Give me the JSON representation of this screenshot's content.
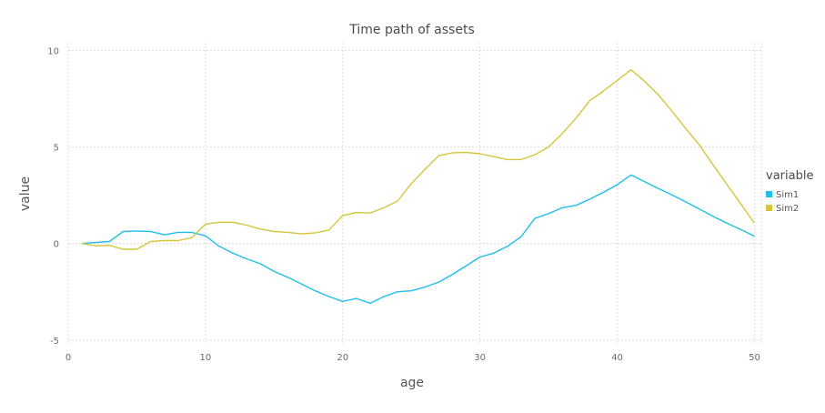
{
  "chart_data": {
    "type": "line",
    "title": "Time path of assets",
    "xlabel": "age",
    "ylabel": "value",
    "xlim": [
      0,
      50.5
    ],
    "ylim": [
      -5.2,
      10.4
    ],
    "xticks": [
      0,
      10,
      20,
      30,
      40,
      50
    ],
    "yticks": [
      -5,
      0,
      5,
      10
    ],
    "grid": true,
    "legend": {
      "title": "variable",
      "position": "right"
    },
    "series": [
      {
        "name": "Sim1",
        "color": "#1fbfea",
        "x": [
          1,
          2,
          3,
          4,
          5,
          6,
          7,
          8,
          9,
          10,
          11,
          12,
          13,
          14,
          15,
          16,
          17,
          18,
          19,
          20,
          21,
          22,
          23,
          24,
          25,
          26,
          27,
          28,
          29,
          30,
          31,
          32,
          33,
          34,
          35,
          36,
          37,
          38,
          39,
          40,
          41,
          42,
          43,
          44,
          45,
          46,
          47,
          48,
          49,
          50
        ],
        "y": [
          0,
          0.05,
          0.1,
          0.62,
          0.65,
          0.62,
          0.45,
          0.58,
          0.58,
          0.4,
          -0.15,
          -0.5,
          -0.8,
          -1.05,
          -1.45,
          -1.75,
          -2.1,
          -2.45,
          -2.75,
          -3.0,
          -2.85,
          -3.1,
          -2.75,
          -2.5,
          -2.45,
          -2.25,
          -2.0,
          -1.6,
          -1.15,
          -0.7,
          -0.5,
          -0.15,
          0.35,
          1.3,
          1.55,
          1.85,
          1.98,
          2.3,
          2.65,
          3.05,
          3.55,
          3.2,
          2.85,
          2.52,
          2.15,
          1.78,
          1.4,
          1.05,
          0.72,
          0.38
        ]
      },
      {
        "name": "Sim2",
        "color": "#d4c63a",
        "x": [
          1,
          2,
          3,
          4,
          5,
          6,
          7,
          8,
          9,
          10,
          11,
          12,
          13,
          14,
          15,
          16,
          17,
          18,
          19,
          20,
          21,
          22,
          23,
          24,
          25,
          26,
          27,
          28,
          29,
          30,
          31,
          32,
          33,
          34,
          35,
          36,
          37,
          38,
          39,
          40,
          41,
          42,
          43,
          44,
          45,
          46,
          47,
          48,
          49,
          50
        ],
        "y": [
          0,
          -0.12,
          -0.1,
          -0.3,
          -0.3,
          0.1,
          0.15,
          0.15,
          0.3,
          1.0,
          1.1,
          1.1,
          0.95,
          0.75,
          0.62,
          0.58,
          0.5,
          0.55,
          0.7,
          1.45,
          1.6,
          1.58,
          1.85,
          2.2,
          3.1,
          3.85,
          4.55,
          4.7,
          4.72,
          4.65,
          4.5,
          4.35,
          4.35,
          4.6,
          5.0,
          5.7,
          6.5,
          7.4,
          7.9,
          8.45,
          9.0,
          8.4,
          7.7,
          6.85,
          5.95,
          5.1,
          4.05,
          3.05,
          2.05,
          1.05
        ]
      }
    ]
  }
}
